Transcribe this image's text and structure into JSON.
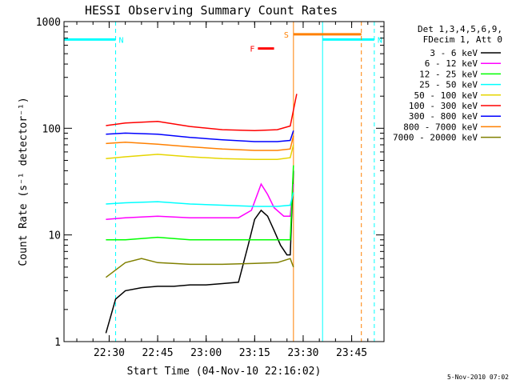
{
  "chart_data": {
    "type": "line",
    "title": "HESSI Observing Summary Count Rates",
    "xlabel": "Start Time (04-Nov-10 22:16:02)",
    "ylabel": "Count Rate (s⁻¹ detector⁻¹)",
    "yscale": "log",
    "ylim": [
      1,
      1000
    ],
    "xlim": [
      "22:16:02",
      "23:55:00"
    ],
    "x_ticks": [
      "22:30",
      "22:45",
      "23:00",
      "23:15",
      "23:30",
      "23:45"
    ],
    "y_ticks": [
      "1",
      "10",
      "100",
      "1000"
    ],
    "legend_header": [
      "Det 1,3,4,5,6,9,",
      "FDecim 1, Att 0"
    ],
    "legend_position": "right",
    "footer": "5-Nov-2010 07:02",
    "series": [
      {
        "name": "3 - 6 keV",
        "color": "#000000",
        "x": [
          "22:29",
          "22:32",
          "22:35",
          "22:40",
          "22:45",
          "22:50",
          "22:55",
          "23:00",
          "23:05",
          "23:10",
          "23:13",
          "23:15",
          "23:17",
          "23:19",
          "23:21",
          "23:23",
          "23:25",
          "23:26",
          "23:27"
        ],
        "y": [
          1.2,
          2.5,
          3.0,
          3.2,
          3.3,
          3.3,
          3.4,
          3.4,
          3.5,
          3.6,
          8,
          14,
          17,
          15,
          11,
          8,
          6.5,
          6.5,
          40
        ]
      },
      {
        "name": "6 - 12 keV",
        "color": "#ff00ff",
        "x": [
          "22:29",
          "22:35",
          "22:45",
          "22:55",
          "23:05",
          "23:10",
          "23:14",
          "23:17",
          "23:19",
          "23:21",
          "23:24",
          "23:26",
          "23:27"
        ],
        "y": [
          14,
          14.5,
          15,
          14.5,
          14.5,
          14.5,
          17,
          30,
          24,
          18,
          15,
          15,
          30
        ]
      },
      {
        "name": "12 - 25 keV",
        "color": "#00ff00",
        "x": [
          "22:29",
          "22:35",
          "22:45",
          "22:55",
          "23:05",
          "23:12",
          "23:17",
          "23:22",
          "23:26",
          "23:27"
        ],
        "y": [
          9,
          9,
          9.5,
          9,
          9,
          9,
          9,
          9,
          9,
          45
        ]
      },
      {
        "name": "25 - 50 keV",
        "color": "#00ffff",
        "x": [
          "22:29",
          "22:35",
          "22:45",
          "22:55",
          "23:05",
          "23:15",
          "23:22",
          "23:26",
          "23:27"
        ],
        "y": [
          19.5,
          20,
          20.5,
          19.5,
          19,
          18.5,
          18.5,
          19,
          25
        ]
      },
      {
        "name": "50 - 100 keV",
        "color": "#e6d500",
        "x": [
          "22:29",
          "22:35",
          "22:45",
          "22:55",
          "23:05",
          "23:15",
          "23:22",
          "23:26",
          "23:27"
        ],
        "y": [
          52,
          54,
          57,
          54,
          52,
          51,
          51,
          53,
          70
        ]
      },
      {
        "name": "100 - 300 keV",
        "color": "#ff0000",
        "x": [
          "22:29",
          "22:35",
          "22:45",
          "22:55",
          "23:05",
          "23:15",
          "23:22",
          "23:26",
          "23:28"
        ],
        "y": [
          106,
          112,
          116,
          104,
          97,
          95,
          97,
          105,
          210
        ]
      },
      {
        "name": "300 - 800 keV",
        "color": "#0000ff",
        "x": [
          "22:29",
          "22:35",
          "22:45",
          "22:55",
          "23:05",
          "23:15",
          "23:22",
          "23:26",
          "23:27"
        ],
        "y": [
          88,
          90,
          88,
          82,
          78,
          75,
          75,
          77,
          95
        ]
      },
      {
        "name": "800 - 7000 keV",
        "color": "#ff8000",
        "x": [
          "22:29",
          "22:35",
          "22:45",
          "22:55",
          "23:05",
          "23:15",
          "23:22",
          "23:26",
          "23:27"
        ],
        "y": [
          72,
          74,
          71,
          67,
          64,
          62,
          62,
          64,
          85
        ]
      },
      {
        "name": "7000 - 20000 keV",
        "color": "#808000",
        "x": [
          "22:29",
          "22:35",
          "22:40",
          "22:45",
          "22:55",
          "23:05",
          "23:15",
          "23:22",
          "23:26",
          "23:27"
        ],
        "y": [
          4,
          5.5,
          6,
          5.5,
          5.3,
          5.3,
          5.4,
          5.5,
          6,
          5
        ]
      }
    ],
    "annotations": [
      {
        "label": "N",
        "color": "#00ffff",
        "type": "night",
        "intervals": [
          [
            "22:16:02",
            "22:32"
          ],
          [
            "23:36",
            "23:52"
          ]
        ],
        "y": 680
      },
      {
        "label": "S",
        "color": "#ff8000",
        "type": "saa",
        "intervals": [
          [
            "23:27",
            "23:48"
          ]
        ],
        "y": 760
      },
      {
        "label": "F",
        "color": "#ff0000",
        "type": "flare",
        "intervals": [
          [
            "23:16",
            "23:21"
          ]
        ],
        "y": 560
      }
    ],
    "grid": false
  }
}
